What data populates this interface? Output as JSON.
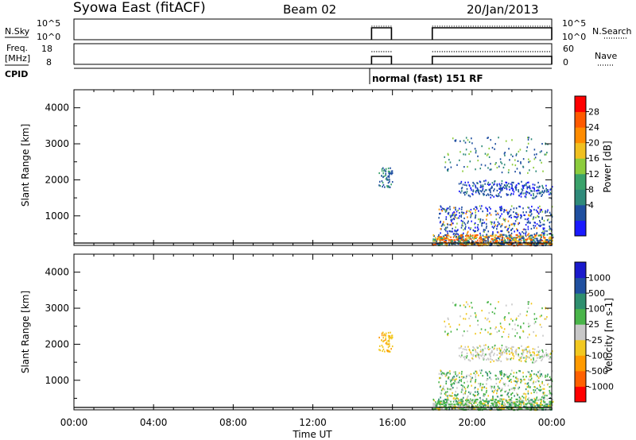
{
  "header": {
    "station": "Syowa East (fitACF)",
    "beam": "Beam 02",
    "date": "20/Jan/2013"
  },
  "status_panels": {
    "nsky": {
      "left_label": "N.Sky",
      "right_label": "N.Search",
      "left_ticks": [
        "10^5",
        "10^0"
      ],
      "right_ticks": [
        "10^5",
        "10^0"
      ]
    },
    "freq": {
      "left_label_line1": "Freq.",
      "left_label_line2": "[MHz]",
      "right_label": "Nave",
      "left_ticks": [
        "18",
        "8"
      ],
      "right_ticks": [
        "60",
        "0"
      ]
    },
    "cpid": {
      "label": "CPID",
      "mode_text": "normal (fast) 151 RF"
    }
  },
  "x_axis": {
    "label": "Time UT",
    "ticks": [
      "00:00",
      "04:00",
      "08:00",
      "12:00",
      "16:00",
      "20:00",
      "00:00"
    ]
  },
  "colors": {
    "power": [
      "#1a1aff",
      "#1f4fa0",
      "#2f8a7a",
      "#3aa26a",
      "#8ccc3c",
      "#f0c020",
      "#ff8c00",
      "#ff5a00",
      "#ff0000"
    ],
    "velocity": [
      "#ff0000",
      "#ff6000",
      "#ff9a00",
      "#f2c820",
      "#c8c8c8",
      "#4ab54a",
      "#2f8f6f",
      "#2050a0",
      "#1a1acc"
    ]
  },
  "chart_data": [
    {
      "type": "line",
      "name": "status-nsky",
      "x_range_hours": [
        0,
        24
      ],
      "segments_hours": [
        [
          14.95,
          15.95
        ],
        [
          18.0,
          24.0
        ]
      ],
      "series": [
        {
          "name": "N.Sky",
          "level": "high"
        },
        {
          "name": "N.Search",
          "level": "high"
        }
      ]
    },
    {
      "type": "line",
      "name": "status-freq",
      "x_range_hours": [
        0,
        24
      ],
      "segments_hours": [
        [
          14.95,
          15.95
        ],
        [
          18.0,
          24.0
        ]
      ],
      "series": [
        {
          "name": "Freq. [MHz]",
          "value_mhz": 10.5
        },
        {
          "name": "Nave",
          "value": 40
        }
      ]
    },
    {
      "type": "heatmap",
      "name": "power",
      "ylabel": "Slant Range [km]",
      "xlabel": "Time UT",
      "xlim_hours": [
        0,
        24
      ],
      "ylim_km": [
        180,
        4500
      ],
      "y_ticks": [
        1000,
        2000,
        3000,
        4000
      ],
      "colorbar": {
        "label": "Power [dB]",
        "ticks": [
          "28",
          "24",
          "20",
          "16",
          "12",
          "8",
          "4"
        ],
        "range": [
          0,
          30
        ]
      },
      "clusters": [
        {
          "t": [
            15.3,
            16.0
          ],
          "r": [
            1800,
            2350
          ],
          "class": "mid"
        },
        {
          "t": [
            18.0,
            24.0
          ],
          "r": [
            200,
            500
          ],
          "class": "ground"
        },
        {
          "t": [
            18.3,
            24.0
          ],
          "r": [
            500,
            1300
          ],
          "class": "low"
        },
        {
          "t": [
            19.3,
            24.0
          ],
          "r": [
            1600,
            2000
          ],
          "class": "arc"
        },
        {
          "t": [
            18.5,
            23.8
          ],
          "r": [
            2200,
            3200
          ],
          "class": "sparse"
        }
      ]
    },
    {
      "type": "heatmap",
      "name": "velocity",
      "ylabel": "Slant Range [km]",
      "xlabel": "Time UT",
      "xlim_hours": [
        0,
        24
      ],
      "ylim_km": [
        180,
        4500
      ],
      "y_ticks": [
        1000,
        2000,
        3000,
        4000
      ],
      "colorbar": {
        "label": "Velocity [m s-1]",
        "ticks": [
          "1000",
          "500",
          "100",
          "25",
          "-25",
          "-100",
          "-500",
          "-1000"
        ],
        "range": [
          -1250,
          1250
        ]
      },
      "clusters": [
        {
          "t": [
            15.3,
            16.0
          ],
          "r": [
            1800,
            2350
          ],
          "class": "mid"
        },
        {
          "t": [
            18.0,
            24.0
          ],
          "r": [
            200,
            500
          ],
          "class": "ground"
        },
        {
          "t": [
            18.3,
            24.0
          ],
          "r": [
            500,
            1300
          ],
          "class": "low"
        },
        {
          "t": [
            19.3,
            24.0
          ],
          "r": [
            1600,
            2000
          ],
          "class": "arc"
        },
        {
          "t": [
            18.5,
            23.8
          ],
          "r": [
            2200,
            3200
          ],
          "class": "sparse"
        }
      ]
    }
  ]
}
